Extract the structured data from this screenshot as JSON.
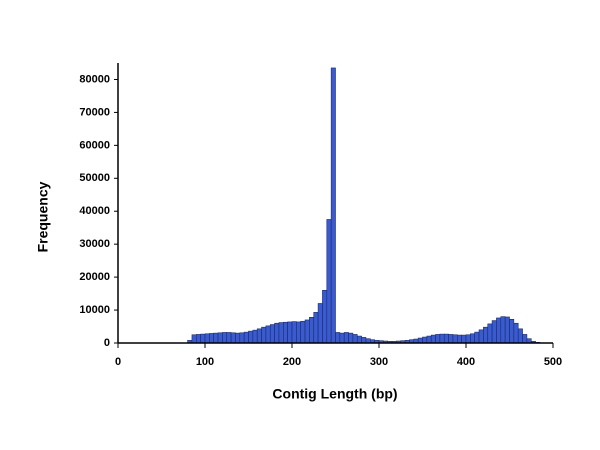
{
  "chart_data": {
    "type": "histogram",
    "x_label": "Contig Length (bp)",
    "y_label": "Frequency",
    "color": "#3a5bd0",
    "bins": [
      80,
      85,
      90,
      95,
      100,
      105,
      110,
      115,
      120,
      125,
      130,
      135,
      140,
      145,
      150,
      155,
      160,
      165,
      170,
      175,
      180,
      185,
      190,
      195,
      200,
      205,
      210,
      215,
      220,
      225,
      230,
      235,
      240,
      245,
      250,
      255,
      260,
      265,
      270,
      275,
      280,
      285,
      290,
      295,
      300,
      305,
      310,
      315,
      320,
      325,
      330,
      335,
      340,
      345,
      350,
      355,
      360,
      365,
      370,
      375,
      380,
      385,
      390,
      395,
      400,
      405,
      410,
      415,
      420,
      425,
      430,
      435,
      440,
      445,
      450,
      455,
      460,
      465,
      470,
      475,
      480,
      485,
      490
    ],
    "values": [
      800,
      2500,
      2600,
      2700,
      2800,
      2900,
      3000,
      3100,
      3200,
      3200,
      3100,
      3000,
      3100,
      3300,
      3600,
      3900,
      4300,
      4800,
      5200,
      5600,
      6000,
      6200,
      6300,
      6400,
      6500,
      6400,
      6600,
      7000,
      7800,
      9300,
      12000,
      16000,
      37500,
      83500,
      3200,
      3000,
      3200,
      3000,
      2600,
      2100,
      1700,
      1300,
      1000,
      800,
      700,
      600,
      500,
      500,
      600,
      700,
      800,
      1000,
      1200,
      1500,
      1800,
      2100,
      2400,
      2600,
      2700,
      2700,
      2600,
      2500,
      2400,
      2400,
      2500,
      2800,
      3300,
      4000,
      4800,
      5800,
      6800,
      7600,
      8000,
      7900,
      7200,
      6000,
      4300,
      2600,
      1300,
      500,
      200,
      50
    ],
    "xlim": [
      0,
      500
    ],
    "xticks": [
      0,
      100,
      200,
      300,
      400,
      500
    ],
    "ylim": [
      0,
      85000
    ],
    "yticks": [
      0,
      10000,
      20000,
      30000,
      40000,
      50000,
      60000,
      70000,
      80000
    ]
  }
}
